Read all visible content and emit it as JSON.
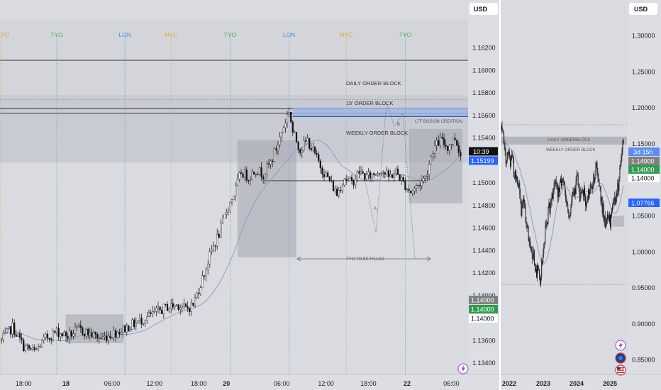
{
  "chart_data": [
    {
      "type": "candlestick",
      "currency": "USD",
      "ylim": [
        1.133,
        1.166
      ],
      "y_ticks": [
        "1.16200",
        "1.16000",
        "1.15800",
        "1.15600",
        "1.15400",
        "1.15200",
        "1.15000",
        "1.14800",
        "1.14600",
        "1.14400",
        "1.14200",
        "1.14000",
        "1.13800",
        "1.13600",
        "1.13400"
      ],
      "x_ticks": [
        {
          "label": "18:00",
          "bold": false
        },
        {
          "label": "18",
          "bold": true
        },
        {
          "label": "06:00",
          "bold": false
        },
        {
          "label": "12:00",
          "bold": false
        },
        {
          "label": "18:00",
          "bold": false
        },
        {
          "label": "20",
          "bold": true
        },
        {
          "label": "06:00",
          "bold": false
        },
        {
          "label": "12:00",
          "bold": false
        },
        {
          "label": "18:00",
          "bold": false
        },
        {
          "label": "22",
          "bold": true
        },
        {
          "label": "06:00",
          "bold": false
        }
      ],
      "sessions": [
        {
          "label": "YO",
          "color": "#e5a23a"
        },
        {
          "label": "TYO",
          "color": "#4caf50"
        },
        {
          "label": "LON",
          "color": "#4a90e2"
        },
        {
          "label": "NYC",
          "color": "#e5a23a"
        },
        {
          "label": "TYO",
          "color": "#4caf50"
        },
        {
          "label": "LON",
          "color": "#4a90e2"
        },
        {
          "label": "NYC",
          "color": "#e5a23a"
        },
        {
          "label": "TYO",
          "color": "#4caf50"
        }
      ],
      "close_path": [
        [
          0,
          1.136
        ],
        [
          6,
          1.1372
        ],
        [
          12,
          1.1355
        ],
        [
          18,
          1.135
        ],
        [
          24,
          1.1362
        ],
        [
          30,
          1.1368
        ],
        [
          36,
          1.1364
        ],
        [
          42,
          1.137
        ],
        [
          48,
          1.1366
        ],
        [
          54,
          1.1362
        ],
        [
          60,
          1.1366
        ],
        [
          66,
          1.137
        ],
        [
          72,
          1.1375
        ],
        [
          78,
          1.138
        ],
        [
          84,
          1.1385
        ],
        [
          90,
          1.139
        ],
        [
          96,
          1.1392
        ],
        [
          100,
          1.1388
        ],
        [
          104,
          1.1392
        ],
        [
          110,
          1.142
        ],
        [
          114,
          1.144
        ],
        [
          118,
          1.1455
        ],
        [
          122,
          1.1475
        ],
        [
          126,
          1.149
        ],
        [
          130,
          1.151
        ],
        [
          134,
          1.1505
        ],
        [
          138,
          1.1512
        ],
        [
          142,
          1.1508
        ],
        [
          146,
          1.1518
        ],
        [
          150,
          1.1535
        ],
        [
          154,
          1.1555
        ],
        [
          156,
          1.1565
        ],
        [
          158,
          1.1545
        ],
        [
          162,
          1.153
        ],
        [
          166,
          1.1538
        ],
        [
          170,
          1.1525
        ],
        [
          174,
          1.1512
        ],
        [
          178,
          1.1502
        ],
        [
          182,
          1.149
        ],
        [
          186,
          1.1505
        ],
        [
          190,
          1.15
        ],
        [
          194,
          1.151
        ],
        [
          198,
          1.1505
        ],
        [
          202,
          1.1508
        ],
        [
          206,
          1.1512
        ],
        [
          210,
          1.1505
        ],
        [
          214,
          1.151
        ],
        [
          218,
          1.15
        ],
        [
          222,
          1.1492
        ],
        [
          226,
          1.1498
        ],
        [
          230,
          1.1505
        ],
        [
          234,
          1.153
        ],
        [
          238,
          1.1538
        ],
        [
          242,
          1.1532
        ],
        [
          246,
          1.154
        ],
        [
          249,
          1.1525
        ]
      ],
      "last_price": "1.15199",
      "countdown": "10:39",
      "price_tags": [
        "1.14000",
        "1.14000",
        "1.14000"
      ],
      "annotations": {
        "daily_ob": "DAILY ORDER BLOCK",
        "ob15": "15' ORDER BLOCK",
        "weekly_ob": "WEEKLY ORDER BLOCK",
        "ltf": "LTF BOS/OB CREATION",
        "bos": "BOS",
        "a": "A",
        "b": "B",
        "tyo": "TYO TO BE FILLED"
      }
    },
    {
      "type": "candlestick",
      "currency": "USD",
      "ylim": [
        0.83,
        1.33
      ],
      "y_ticks": [
        "1.30000",
        "1.25000",
        "1.20000",
        "1.15000",
        "1.10000",
        "1.05000",
        "1.00000",
        "0.95000",
        "0.90000",
        "0.85000"
      ],
      "x_ticks": [
        {
          "label": "2022",
          "bold": true
        },
        {
          "label": "2023",
          "bold": true
        },
        {
          "label": "2024",
          "bold": true
        },
        {
          "label": "2025",
          "bold": true
        }
      ],
      "close_path": [
        [
          0,
          1.17
        ],
        [
          3,
          1.15
        ],
        [
          6,
          1.13
        ],
        [
          9,
          1.14
        ],
        [
          12,
          1.12
        ],
        [
          15,
          1.13
        ],
        [
          18,
          1.1
        ],
        [
          21,
          1.11
        ],
        [
          24,
          1.09
        ],
        [
          27,
          1.06
        ],
        [
          30,
          1.07
        ],
        [
          33,
          1.05
        ],
        [
          36,
          1.03
        ],
        [
          39,
          1.01
        ],
        [
          42,
          1.0
        ],
        [
          45,
          0.99
        ],
        [
          48,
          0.97
        ],
        [
          51,
          0.98
        ],
        [
          53,
          0.96
        ],
        [
          56,
          0.99
        ],
        [
          59,
          1.02
        ],
        [
          62,
          1.04
        ],
        [
          65,
          1.06
        ],
        [
          68,
          1.07
        ],
        [
          71,
          1.08
        ],
        [
          74,
          1.1
        ],
        [
          77,
          1.08
        ],
        [
          80,
          1.09
        ],
        [
          83,
          1.1
        ],
        [
          86,
          1.09
        ],
        [
          89,
          1.07
        ],
        [
          92,
          1.05
        ],
        [
          95,
          1.06
        ],
        [
          98,
          1.08
        ],
        [
          101,
          1.09
        ],
        [
          104,
          1.1
        ],
        [
          107,
          1.08
        ],
        [
          110,
          1.09
        ],
        [
          113,
          1.08
        ],
        [
          116,
          1.07
        ],
        [
          119,
          1.08
        ],
        [
          122,
          1.09
        ],
        [
          125,
          1.1
        ],
        [
          128,
          1.11
        ],
        [
          131,
          1.12
        ],
        [
          134,
          1.09
        ],
        [
          137,
          1.07
        ],
        [
          140,
          1.05
        ],
        [
          143,
          1.04
        ],
        [
          146,
          1.05
        ],
        [
          149,
          1.04
        ],
        [
          152,
          1.06
        ],
        [
          155,
          1.07
        ],
        [
          158,
          1.08
        ],
        [
          161,
          1.1
        ],
        [
          164,
          1.14
        ],
        [
          167,
          1.15
        ]
      ],
      "countdown_label": "3d 15h",
      "price_tags": [
        "1.14000",
        "1.14000",
        "1.14000",
        "1.07766"
      ],
      "annotations": {
        "daily_ob": "DAILY ORDERBLOCK",
        "weekly_ob": "WEEKLY ORDER BLOCK"
      }
    }
  ],
  "colors": {
    "background": "#dcdee3",
    "candle": "#111111",
    "last_price": "#2962ff",
    "tag_gray": "#808080",
    "tag_green": "#2e9e4f",
    "ma": "#8a96c8"
  }
}
